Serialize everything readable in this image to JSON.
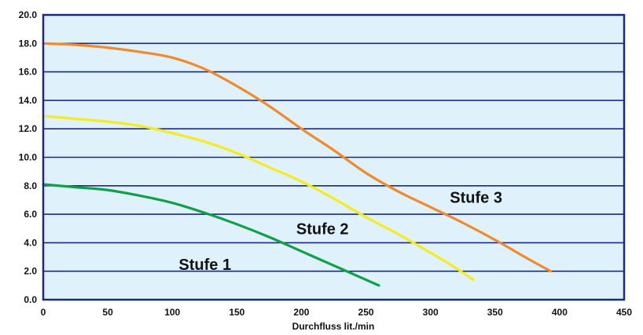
{
  "chart_data": {
    "type": "line",
    "title": "",
    "xlabel": "Durchfluss lit./min",
    "ylabel": "",
    "xlim": [
      0,
      450
    ],
    "ylim": [
      0,
      20
    ],
    "xticks": [
      0,
      50,
      100,
      150,
      200,
      250,
      300,
      350,
      400,
      450
    ],
    "xtick_labels": [
      "0",
      "50",
      "100",
      "150",
      "200",
      "250",
      "300",
      "350",
      "400",
      "450"
    ],
    "yticks": [
      0,
      2,
      4,
      6,
      8,
      10,
      12,
      14,
      16,
      18,
      20
    ],
    "ytick_labels": [
      "0.0",
      "2.0",
      "4.0",
      "6.0",
      "8.0",
      "10.0",
      "12.0",
      "14.0",
      "16.0",
      "18.0",
      "20.0"
    ],
    "grid": "horizontal",
    "plot_background": "#dff1fb",
    "grid_color": "#1a2a80",
    "frame_color": "#1a2a80",
    "series": [
      {
        "name": "Stufe 1",
        "color": "#10a04a",
        "x": [
          0,
          25,
          50,
          75,
          100,
          125,
          150,
          175,
          200,
          225,
          240,
          260
        ],
        "y": [
          8.1,
          7.9,
          7.7,
          7.3,
          6.8,
          6.1,
          5.3,
          4.4,
          3.4,
          2.4,
          1.8,
          1.0
        ]
      },
      {
        "name": "Stufe 2",
        "color": "#f4ec1e",
        "x": [
          0,
          25,
          50,
          75,
          100,
          125,
          150,
          175,
          200,
          225,
          250,
          275,
          300,
          320,
          333
        ],
        "y": [
          12.9,
          12.7,
          12.5,
          12.2,
          11.7,
          11.1,
          10.3,
          9.3,
          8.3,
          7.1,
          5.8,
          4.6,
          3.3,
          2.2,
          1.4
        ]
      },
      {
        "name": "Stufe 3",
        "color": "#f28a2b",
        "x": [
          0,
          25,
          50,
          75,
          100,
          125,
          150,
          175,
          200,
          225,
          250,
          275,
          300,
          325,
          350,
          375,
          393
        ],
        "y": [
          18.0,
          17.9,
          17.7,
          17.4,
          17.0,
          16.2,
          15.0,
          13.6,
          12.0,
          10.5,
          8.9,
          7.6,
          6.5,
          5.4,
          4.2,
          2.9,
          2.0
        ]
      }
    ],
    "annotations": [
      {
        "text": "Stufe 1",
        "x": 228,
        "y": 2.1
      },
      {
        "text": "Stufe 2",
        "x": 377,
        "y": 4.6
      },
      {
        "text": "Stufe 3",
        "x": 573,
        "y": 6.8
      }
    ]
  }
}
